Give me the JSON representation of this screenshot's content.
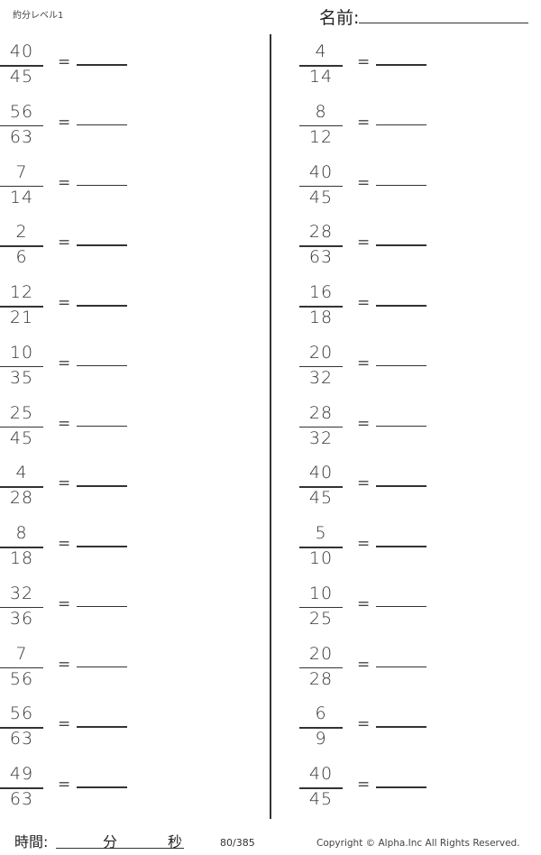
{
  "header": {
    "title": "約分レベル1",
    "name_label": "名前:"
  },
  "equals": "=",
  "left_problems": [
    {
      "n": "40",
      "d": "45"
    },
    {
      "n": "56",
      "d": "63"
    },
    {
      "n": "7",
      "d": "14"
    },
    {
      "n": "2",
      "d": "6"
    },
    {
      "n": "12",
      "d": "21"
    },
    {
      "n": "10",
      "d": "35"
    },
    {
      "n": "25",
      "d": "45"
    },
    {
      "n": "4",
      "d": "28"
    },
    {
      "n": "8",
      "d": "18"
    },
    {
      "n": "32",
      "d": "36"
    },
    {
      "n": "7",
      "d": "56"
    },
    {
      "n": "56",
      "d": "63"
    },
    {
      "n": "49",
      "d": "63"
    }
  ],
  "right_problems": [
    {
      "n": "4",
      "d": "14"
    },
    {
      "n": "8",
      "d": "12"
    },
    {
      "n": "40",
      "d": "45"
    },
    {
      "n": "28",
      "d": "63"
    },
    {
      "n": "16",
      "d": "18"
    },
    {
      "n": "20",
      "d": "32"
    },
    {
      "n": "28",
      "d": "32"
    },
    {
      "n": "40",
      "d": "45"
    },
    {
      "n": "5",
      "d": "10"
    },
    {
      "n": "10",
      "d": "25"
    },
    {
      "n": "20",
      "d": "28"
    },
    {
      "n": "6",
      "d": "9"
    },
    {
      "n": "40",
      "d": "45"
    }
  ],
  "footer": {
    "time_label": "時間:",
    "minutes_label": "分",
    "seconds_label": "秒",
    "page": "80/385",
    "copyright": "Copyright ©  Alpha.Inc All Rights Reserved."
  }
}
